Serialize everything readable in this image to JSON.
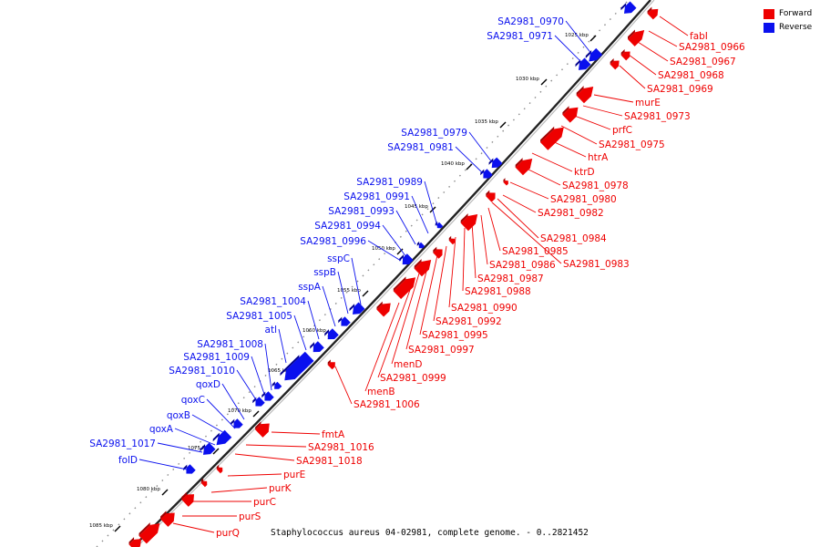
{
  "caption": "Staphylococcus aureus 04-02981, complete genome. - 0..2821452",
  "legend": [
    {
      "label": "Forward",
      "color": "#ee0000"
    },
    {
      "label": "Reverse",
      "color": "#0a10ee"
    }
  ],
  "colors": {
    "forward": "#ee0000",
    "reverse": "#0a10ee",
    "backbone": "#555555"
  },
  "tick_labels": [
    "1025 kbp",
    "1030 kbp",
    "1035 kbp",
    "1040 kbp",
    "1045 kbp",
    "1050 kbp",
    "1055 kbp",
    "1060 kbp",
    "1065 kbp",
    "1070 kbp",
    "1075 kbp",
    "1080 kbp",
    "1085 kbp"
  ],
  "forward_genes": [
    "fabI",
    "SA2981_0966",
    "SA2981_0967",
    "SA2981_0968",
    "SA2981_0969",
    "murE",
    "SA2981_0973",
    "prfC",
    "SA2981_0975",
    "htrA",
    "ktrD",
    "SA2981_0978",
    "SA2981_0980",
    "SA2981_0982",
    "SA2981_0984",
    "SA2981_0985",
    "SA2981_0986",
    "SA2981_0983",
    "SA2981_0987",
    "SA2981_0988",
    "SA2981_0990",
    "SA2981_0992",
    "SA2981_0995",
    "SA2981_0997",
    "menD",
    "SA2981_0999",
    "menB",
    "SA2981_1006",
    "fmtA",
    "SA2981_1016",
    "SA2981_1018",
    "purE",
    "purK",
    "purC",
    "purS",
    "purQ"
  ],
  "reverse_genes": [
    "SA2981_0970",
    "SA2981_0971",
    "SA2981_0979",
    "SA2981_0981",
    "SA2981_0989",
    "SA2981_0991",
    "SA2981_0993",
    "SA2981_0994",
    "SA2981_0996",
    "sspC",
    "sspB",
    "sspA",
    "SA2981_1004",
    "SA2981_1005",
    "atl",
    "SA2981_1008",
    "SA2981_1009",
    "SA2981_1010",
    "qoxD",
    "qoxC",
    "qoxB",
    "qoxA",
    "SA2981_1017",
    "folD"
  ]
}
